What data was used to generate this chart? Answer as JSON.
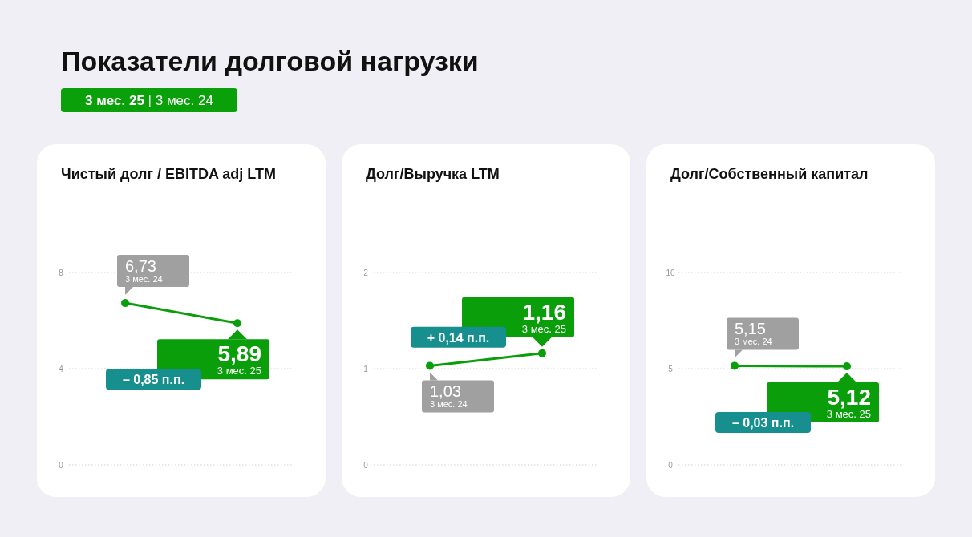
{
  "chart_data": [
    {
      "type": "other",
      "title": "Показатели долговой нагрузки",
      "subtitle": "3 мес. 25 | 3 мес. 24"
    },
    {
      "type": "line",
      "title": "Чистый долг / EBITDA adj LTM",
      "categories": [
        null,
        null
      ],
      "series": [
        {
          "color": "#0a9e0a",
          "values": [
            6.73,
            5.89
          ],
          "value_labels": [
            "6,73",
            "5,89"
          ]
        }
      ],
      "ylim": [
        0,
        8
      ],
      "yticks": [
        0,
        4,
        8
      ],
      "grid": "y",
      "marker": "circle",
      "annotations": [
        "3 мес. 24",
        "3 мес. 25",
        "– 0,85 п.п."
      ]
    },
    {
      "type": "line",
      "title": "Долг/Выручка LTM",
      "categories": [
        null,
        null
      ],
      "series": [
        {
          "color": "#0a9e0a",
          "values": [
            1.03,
            1.16
          ],
          "value_labels": [
            "1,03",
            "1,16"
          ]
        }
      ],
      "ylim": [
        0,
        2
      ],
      "yticks": [
        0,
        1,
        2
      ],
      "grid": "y",
      "marker": "circle",
      "annotations": [
        "3 мес. 24",
        "3 мес. 25",
        "+ 0,14 п.п."
      ]
    },
    {
      "type": "line",
      "title": "Долг/Собственный капитал",
      "categories": [
        null,
        null
      ],
      "series": [
        {
          "color": "#0a9e0a",
          "values": [
            5.15,
            5.12
          ],
          "value_labels": [
            "5,15",
            "5,12"
          ]
        }
      ],
      "ylim": [
        0,
        10
      ],
      "yticks": [
        0,
        5,
        10
      ],
      "grid": "y",
      "marker": "circle",
      "annotations": [
        "3 мес. 24",
        "3 мес. 25",
        "– 0,03 п.п."
      ]
    }
  ]
}
